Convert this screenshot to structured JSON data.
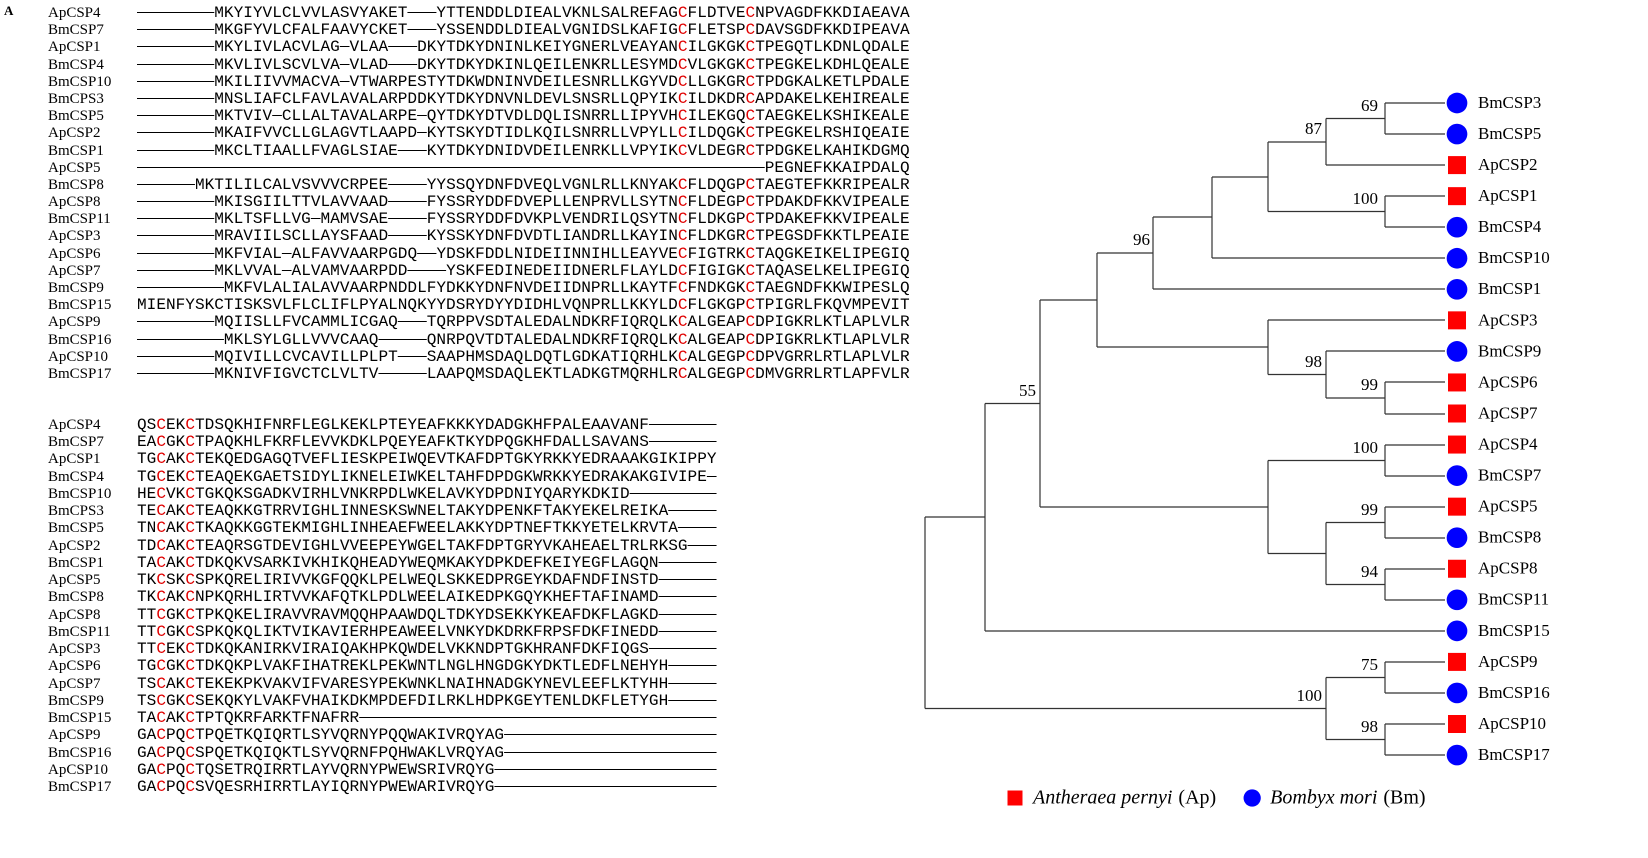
{
  "panel_label": "A",
  "alignment": {
    "blocks": [
      {
        "rows": [
          {
            "name": "ApCSP4",
            "seq": "--------MKYIYVLCLVVLASVYAKET---YTTENDDLDIEALVKNLSALREFAGCFLDTVECNPVAGDFKKDIAEAVA"
          },
          {
            "name": "BmCSP7",
            "seq": "--------MKGFYVLCFALFAAVYCKET---YSSENDDLDIEALVGNIDSLKAFIGCFLETSPCDAVSGDFKKDIPEAVA"
          },
          {
            "name": "ApCSP1",
            "seq": "--------MKYLIVLACVLAG-VLAA---DKYTDKYDNINLKEIYGNERLVEAYANCILGKGKCTPEGQTLKDNLQDALE"
          },
          {
            "name": "BmCSP4",
            "seq": "--------MKVLIVLSCVLVA-VLAD---DKYTDKYDKINLQEILENKRLLESYMDCVLGKGKCTPEGKELKDHLQEALE"
          },
          {
            "name": "BmCSP10",
            "seq": "--------MKILIIVVMACVA-VTWARPESTYTDKWDNINVDEILESNRLLKGYVDCLLGKGRCTPDGKALKETLPDALE"
          },
          {
            "name": "BmCPS3",
            "seq": "--------MNSLIAFCLFAVLAVALARPDDKYTDKYDNVNLDEVLSNSRLLQPYIKCILDKDRCAPDAKELKEHIREALE"
          },
          {
            "name": "BmCSP5",
            "seq": "--------MKTVIV-CLLALTAVALARPE-QYTDKYDTVDLDQLISNRRLLIPYVHCILEKGQCTAEGKELKSHIKEALE"
          },
          {
            "name": "ApCSP2",
            "seq": "--------MKAIFVVCLLGLAGVTLAAPD-KYTSKYDTIDLKQILSNRRLLVPYLLCILDQGKCTPEGKELRSHIQEAIE"
          },
          {
            "name": "BmCSP1",
            "seq": "--------MKCLTIAALLFVAGLSIAE---KYTDKYDNIDVDEILENRKLLVPYIKCVLDEGRCTPDGKELKAHIKDGMQ"
          },
          {
            "name": "ApCSP5",
            "seq": "-----------------------------------------------------------------PEGNEFKKAIPDALQ"
          },
          {
            "name": "BmCSP8",
            "seq": "------MKTILILCALVSVVVCRPEE----YYSSQYDNFDVEQLVGNLRLLKNYAKCFLDQGPCTAEGTEFKKRIPEALR"
          },
          {
            "name": "ApCSP8",
            "seq": "--------MKISGIILTTVLAVVAAD----FYSSRYDDFDVEPLLENPRVLLSYTNCFLDEGPCTPDAKDFKKVIPEALE"
          },
          {
            "name": "BmCSP11",
            "seq": "--------MKLTSFLLVG-MAMVSAE----FYSSRYDDFDVKPLVENDRILQSYTNCFLDKGPCTPDAKEFKKVIPEALE"
          },
          {
            "name": "ApCSP3",
            "seq": "--------MRAVIILSCLLAYSFAAD----KYSSKYDNFDVDTLIANDRLLKAYINCFLDKGRCTPEGSDFKKTLPEAIE"
          },
          {
            "name": "ApCSP6",
            "seq": "--------MKFVIAL-ALFAVVAARPGDQ--YDSKFDDLNIDEIINNIHLLEAYVECFIGTRKCTAQGKEIKELIPEGIQ"
          },
          {
            "name": "ApCSP7",
            "seq": "--------MKLVVAL-ALVAMVAARPDD----YSKFEDINEDEIIDNERLFLAYLDCFIGIGKCTAQASELKELIPEGIQ"
          },
          {
            "name": "BmCSP9",
            "seq": "---------MKFVLALIALAVVAARPNDDLFYDKKYDNFNVDEIIDNPRLLKAYTFCFNDKGKCTAEGNDFKKWIPESLQ"
          },
          {
            "name": "BmCSP15",
            "seq": "MIENFYSKCTISKSVLFLCLIFLPYALNQKYYDSRYDYYDIDHLVQNPRLLKKYLDCFLGKGPCTPIGRLFKQVMPEVIT"
          },
          {
            "name": "ApCSP9",
            "seq": "--------MQIISLLFVCAMMLICGAQ---TQRPPVSDTALEDALNDKRFIQRQLKCALGEAPCDPIGKRLKTLAPLVLR"
          },
          {
            "name": "BmCSP16",
            "seq": "---------MKLSYLGLLVVVCAAQ-----QNRPQVTDTALEDALNDKRFIQRQLKCALGEAPCDPIGKRLKTLAPLVLR"
          },
          {
            "name": "ApCSP10",
            "seq": "--------MQIVILLCVCAVILLPLPT---SAAPHMSDAQLDQTLGDKATIQRHLKCALGEGPCDPVGRRLRTLAPLVLR"
          },
          {
            "name": "BmCSP17",
            "seq": "--------MKNIVFIGVCTCLVLTV-----LAAPQMSDAQLEKTLADKGTMQRHLRCALGEGPCDMVGRRLRTLAPFVLR"
          }
        ]
      },
      {
        "rows": [
          {
            "name": "ApCSP4",
            "seq": "QSCEKCTDSQKHIFNRFLEGLKEKLPTEYEAFKKKYDADGKHFPALEAAVANF-------"
          },
          {
            "name": "BmCSP7",
            "seq": "EACGKCTPAQKHLFKRFLEVVKDKLPQEYEAFKTKYDPQGKHFDALLSAVANS-------"
          },
          {
            "name": "ApCSP1",
            "seq": "TGCAKCTEKQEDGAGQTVEFLIESKPEIWQEVTKAFDPTGKYRKKYEDRAAAKGIKIPPY"
          },
          {
            "name": "BmCSP4",
            "seq": "TGCEKCTEAQEKGAETSIDYLIKNELEIWKELTAHFDPDGKWRKKYEDRAKAKGIVIPE-"
          },
          {
            "name": "BmCSP10",
            "seq": "HECVKCTGKQKSGADKVIRHLVNKRPDLWKELAVKYDPDNIYQARYKDKID---------"
          },
          {
            "name": "BmCPS3",
            "seq": "TECAKCTEAQKKGTRRVIGHLINNESKSWNELTAKYDPENKFTAKYEKELREIKA-----"
          },
          {
            "name": "BmCSP5",
            "seq": "TNCAKCTKAQKKGGTEKMIGHLINHEAEFWEELAKKYDPTNEFTKKYETELKRVTA----"
          },
          {
            "name": "ApCSP2",
            "seq": "TDCAKCTEAQRSGTDEVIGHLVVEEPEYWGELTAKFDPTGRYVKAHEAELTRLRKSG---"
          },
          {
            "name": "BmCSP1",
            "seq": "TACAKCTDKQKVSARKIVKHIKQHEADYWEQMKAKYDPKDEFKEIYEGFLAGQN------"
          },
          {
            "name": "ApCSP5",
            "seq": "TKCSKCSPKQRELIRIVVKGFQQKLPELWEQLSKKEDPRGEYKDAFNDFINSTD------"
          },
          {
            "name": "BmCSP8",
            "seq": "TKCAKCNPKQRHLIRTVVKAFQTKLPDLWEELAIKEDPKGQYKHEFTAFINAMD------"
          },
          {
            "name": "ApCSP8",
            "seq": "TTCGKCTPKQKELIRAVVRAVMQQHPAAWDQLTDKYDSEKKYKEAFDKFLAGKD------"
          },
          {
            "name": "BmCSP11",
            "seq": "TTCGKCSPKQKQLIKTVIKAVIERHPEAWEELVNKYDKDRKFRPSFDKFINEDD------"
          },
          {
            "name": "ApCSP3",
            "seq": "TTCEKCTDKQKANIRKVIRAIQAKHPKQWDELVKKNDPTGKHRANFDKFIQGS-------"
          },
          {
            "name": "ApCSP6",
            "seq": "TGCGKCTDKQKPLVAKFIHATREKLPEKWNTLNGLHNGDGKYDKTLEDFLNEHYH-----"
          },
          {
            "name": "ApCSP7",
            "seq": "TSCAKCTEKEKPKVAKVIFVARESYPEKWNKLNAIHNADGKYNEVLEEFLKTYHH-----"
          },
          {
            "name": "BmCSP9",
            "seq": "TSCGKCSEKQKYLVAKFVHAIKDKMPDEFDILRKLHDPKGEYTENLDKFLETYGH-----"
          },
          {
            "name": "BmCSP15",
            "seq": "TACAKCTPTQKRFARKTFNAFRR-------------------------------------"
          },
          {
            "name": "ApCSP9",
            "seq": "GACPQCTPQETKQIQRTLSYVQRNYPQQWAKIVRQYAG----------------------"
          },
          {
            "name": "BmCSP16",
            "seq": "GACPQCSPQETKQIQKTLSYVQRNFPQHWAKLVRQYAG----------------------"
          },
          {
            "name": "ApCSP10",
            "seq": "GACPQCTQSETRQIRRTLAYVQRNYPWEWSRIVRQYG-----------------------"
          },
          {
            "name": "BmCSP17",
            "seq": "GACPQCSVQESRHIRRTLAYIQRNYPWEWARIVRQYG-----------------------"
          }
        ]
      }
    ],
    "highlight_color": "#e00000"
  },
  "tree": {
    "leaves": [
      {
        "label": "BmCSP3",
        "marker": "circle"
      },
      {
        "label": "BmCSP5",
        "marker": "circle"
      },
      {
        "label": "ApCSP2",
        "marker": "square"
      },
      {
        "label": "ApCSP1",
        "marker": "square"
      },
      {
        "label": "BmCSP4",
        "marker": "circle"
      },
      {
        "label": "BmCSP10",
        "marker": "circle"
      },
      {
        "label": "BmCSP1",
        "marker": "circle"
      },
      {
        "label": "ApCSP3",
        "marker": "square"
      },
      {
        "label": "BmCSP9",
        "marker": "circle"
      },
      {
        "label": "ApCSP6",
        "marker": "square"
      },
      {
        "label": "ApCSP7",
        "marker": "square"
      },
      {
        "label": "ApCSP4",
        "marker": "square"
      },
      {
        "label": "BmCSP7",
        "marker": "circle"
      },
      {
        "label": "ApCSP5",
        "marker": "square"
      },
      {
        "label": "BmCSP8",
        "marker": "circle"
      },
      {
        "label": "ApCSP8",
        "marker": "square"
      },
      {
        "label": "BmCSP11",
        "marker": "circle"
      },
      {
        "label": "BmCSP15",
        "marker": "circle"
      },
      {
        "label": "ApCSP9",
        "marker": "square"
      },
      {
        "label": "BmCSP16",
        "marker": "circle"
      },
      {
        "label": "ApCSP10",
        "marker": "square"
      },
      {
        "label": "BmCSP17",
        "marker": "circle"
      }
    ],
    "bootstrap": [
      69,
      87,
      100,
      96,
      98,
      99,
      100,
      99,
      94,
      55,
      100,
      75,
      98
    ]
  },
  "legend": [
    {
      "name": "Antheraea pernyi",
      "abbr": "(Ap)",
      "marker": "square",
      "color": "#ff0000"
    },
    {
      "name": "Bombyx mori",
      "abbr": "(Bm)",
      "marker": "circle",
      "color": "#0000ff"
    }
  ]
}
